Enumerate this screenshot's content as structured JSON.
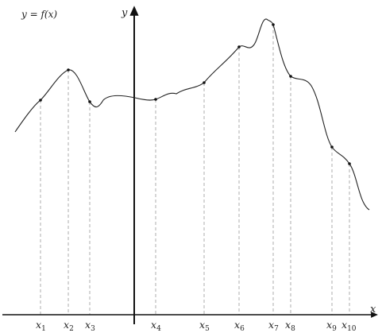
{
  "function_label": "y = f(x)",
  "axes": {
    "y_label": "y",
    "x_label": "x"
  },
  "points": [
    {
      "name": "x",
      "sub": "1"
    },
    {
      "name": "x",
      "sub": "2"
    },
    {
      "name": "x",
      "sub": "3"
    },
    {
      "name": "x",
      "sub": "4"
    },
    {
      "name": "x",
      "sub": "5"
    },
    {
      "name": "x",
      "sub": "6"
    },
    {
      "name": "x",
      "sub": "7"
    },
    {
      "name": "x",
      "sub": "8"
    },
    {
      "name": "x",
      "sub": "9"
    },
    {
      "name": "x",
      "sub": "10"
    }
  ]
}
